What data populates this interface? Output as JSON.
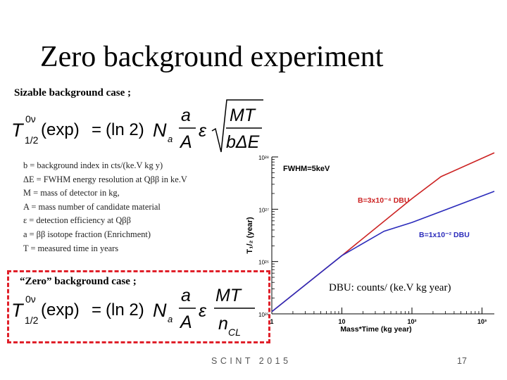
{
  "slide": {
    "title": "Zero background experiment",
    "case1_label": "Sizable background case ;",
    "case2_label": "“Zero” background case ;",
    "dbu_note": "DBU: counts/ (ke.V kg year)",
    "footer": "SCINT 2015",
    "page_number": "17",
    "definitions": [
      "b = background index in cts/(ke.V kg y)",
      "ΔE = FWHM energy resolution at Qββ in ke.V",
      "M = mass of detector in kg,",
      "A = mass number of candidate material",
      "ε  = detection efficiency at Qββ",
      "a = ββ isotope fraction (Enrichment)",
      "T  = measured time in years"
    ]
  },
  "formula1": {
    "lhs_base": "T",
    "lhs_sup": "0ν",
    "lhs_sub": "1/2",
    "paren": "(exp)",
    "eq": "=",
    "ln": "(ln 2)",
    "N": "N",
    "N_sub": "a",
    "frac_num": "a",
    "frac_den": "A",
    "eps": "ε",
    "sqrt_num": "MT",
    "sqrt_den": "bΔE"
  },
  "formula2": {
    "lhs_base": "T",
    "lhs_sup": "0ν",
    "lhs_sub": "1/2",
    "paren": "(exp)",
    "eq": "=",
    "ln": "(ln 2)",
    "N": "N",
    "N_sub": "a",
    "frac_num": "a",
    "frac_den": "A",
    "eps": "ε",
    "frac2_num": "MT",
    "frac2_den": "n",
    "frac2_den_sub": "CL"
  },
  "chart_data": {
    "type": "line",
    "ylabel": "T₁/₂ (year)",
    "xlabel": "Mass*Time (kg year)",
    "x_scale": "log",
    "y_scale": "log",
    "xlim": [
      1,
      1500
    ],
    "ylim": [
      1e+25,
      1e+28
    ],
    "x_tick_labels": [
      "1",
      "10",
      "10²",
      "10³"
    ],
    "y_tick_labels": [
      "10²⁵",
      "10²⁶",
      "10²⁷",
      "10²⁸"
    ],
    "annotations": [
      "FWHM=5keV"
    ],
    "series": [
      {
        "name": "B=3x10⁻⁴ DBU",
        "color": "#cc2222",
        "x": [
          1,
          10,
          100,
          260,
          1500
        ],
        "y": [
          1.1e+25,
          1.3e+26,
          1.6e+27,
          4.2e+27,
          1.2e+28
        ]
      },
      {
        "name": "B=1x10⁻² DBU",
        "color": "#2b2bbb",
        "x": [
          1,
          10,
          40,
          100,
          1500
        ],
        "y": [
          1.1e+25,
          1.3e+26,
          3.8e+26,
          5.6e+26,
          2.2e+27
        ]
      }
    ]
  }
}
